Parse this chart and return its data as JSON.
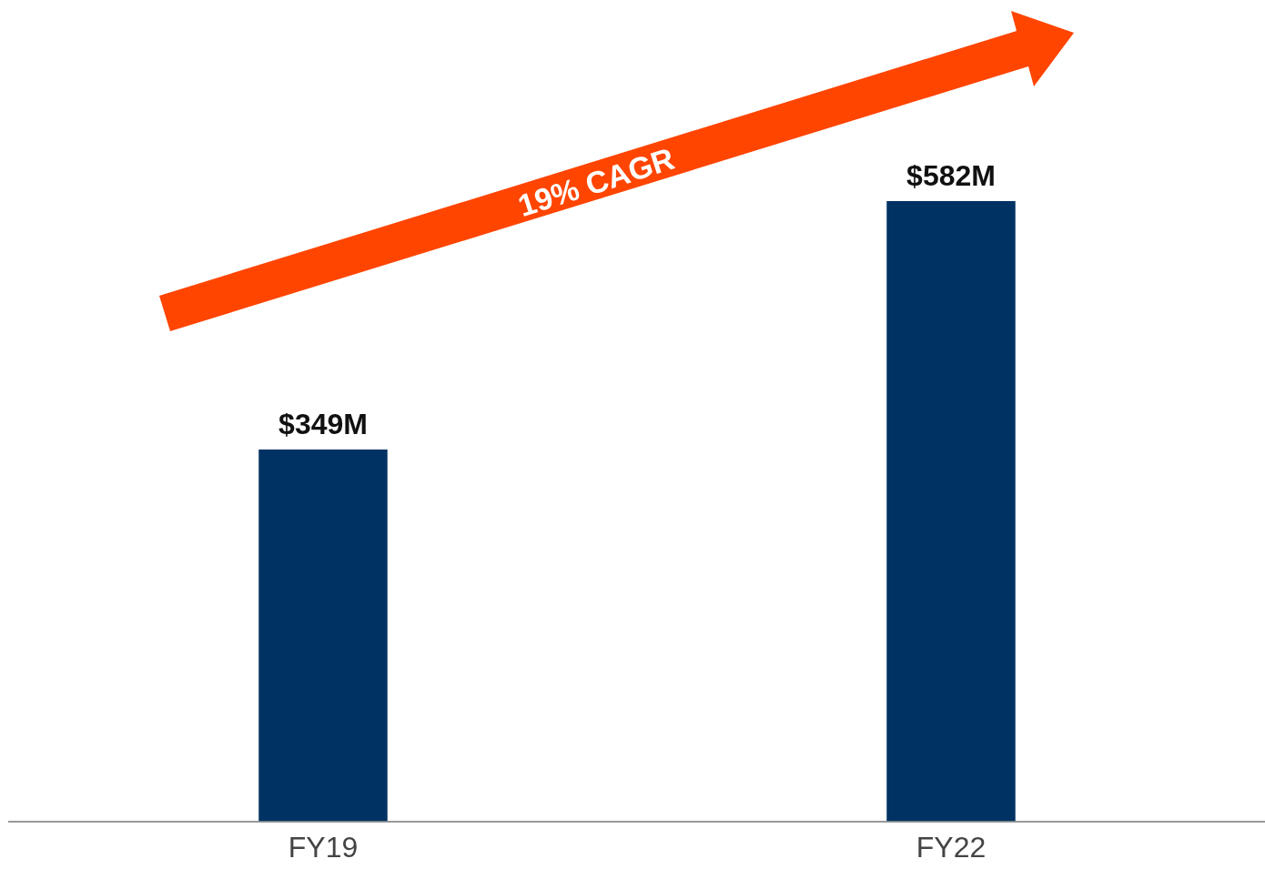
{
  "chart_data": {
    "type": "bar",
    "categories": [
      "FY19",
      "FY22"
    ],
    "values": [
      349,
      582
    ],
    "value_labels": [
      "$349M",
      "$582M"
    ],
    "color": "#003263",
    "annotations": [
      "19% CAGR"
    ]
  }
}
